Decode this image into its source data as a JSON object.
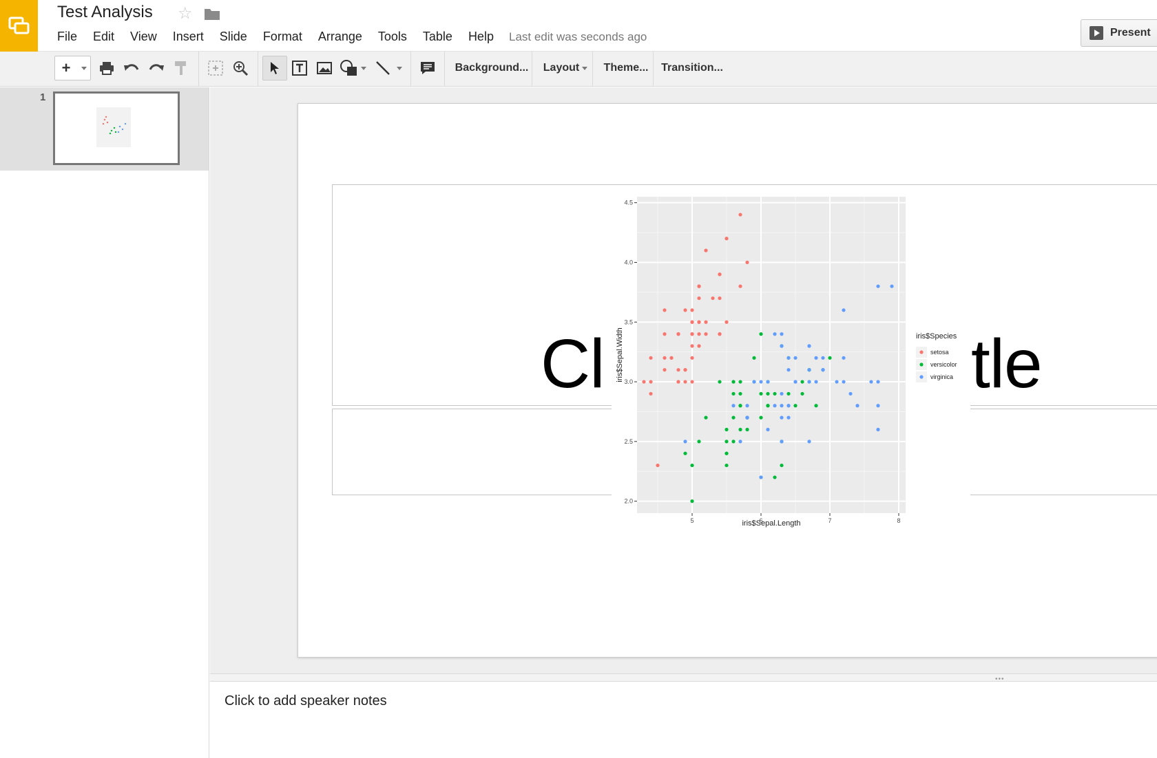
{
  "header": {
    "title": "Test Analysis",
    "menu": [
      "File",
      "Edit",
      "View",
      "Insert",
      "Slide",
      "Format",
      "Arrange",
      "Tools",
      "Table",
      "Help"
    ],
    "last_edit": "Last edit was seconds ago",
    "present_label": "Present"
  },
  "toolbar": {
    "new_slide": "+",
    "background_label": "Background...",
    "layout_label": "Layout",
    "theme_label": "Theme...",
    "transition_label": "Transition..."
  },
  "filmstrip": {
    "slide_number": "1"
  },
  "slide": {
    "title_visible_left": "Cl",
    "title_visible_right": "tle"
  },
  "notes": {
    "placeholder": "Click to add speaker notes"
  },
  "colors": {
    "logo": "#f4b400",
    "setosa": "#f8766d",
    "versicolor": "#00ba38",
    "virginica": "#619cff",
    "plot_panel": "#ebebeb"
  },
  "chart_data": {
    "type": "scatter",
    "title": "",
    "xlabel": "iris$Sepal.Length",
    "ylabel": "iris$Sepal.Width",
    "xlim": [
      4.2,
      8.1
    ],
    "ylim": [
      1.9,
      4.55
    ],
    "x_ticks": [
      5,
      6,
      7,
      8
    ],
    "y_ticks": [
      2.0,
      2.5,
      3.0,
      3.5,
      4.0,
      4.5
    ],
    "grid": true,
    "legend_title": "iris$Species",
    "legend_position": "right",
    "series": [
      {
        "name": "setosa",
        "color": "#f8766d",
        "points": [
          [
            5.1,
            3.5
          ],
          [
            4.9,
            3.0
          ],
          [
            4.7,
            3.2
          ],
          [
            4.6,
            3.1
          ],
          [
            5.0,
            3.6
          ],
          [
            5.4,
            3.9
          ],
          [
            4.6,
            3.4
          ],
          [
            5.0,
            3.4
          ],
          [
            4.4,
            2.9
          ],
          [
            4.9,
            3.1
          ],
          [
            5.4,
            3.7
          ],
          [
            4.8,
            3.4
          ],
          [
            4.8,
            3.0
          ],
          [
            4.3,
            3.0
          ],
          [
            5.8,
            4.0
          ],
          [
            5.7,
            4.4
          ],
          [
            5.4,
            3.9
          ],
          [
            5.1,
            3.5
          ],
          [
            5.7,
            3.8
          ],
          [
            5.1,
            3.8
          ],
          [
            5.4,
            3.4
          ],
          [
            5.1,
            3.7
          ],
          [
            4.6,
            3.6
          ],
          [
            5.1,
            3.3
          ],
          [
            4.8,
            3.4
          ],
          [
            5.0,
            3.0
          ],
          [
            5.0,
            3.4
          ],
          [
            5.2,
            3.5
          ],
          [
            5.2,
            3.4
          ],
          [
            4.7,
            3.2
          ],
          [
            4.8,
            3.1
          ],
          [
            5.4,
            3.4
          ],
          [
            5.2,
            4.1
          ],
          [
            5.5,
            4.2
          ],
          [
            4.9,
            3.1
          ],
          [
            5.0,
            3.2
          ],
          [
            5.5,
            3.5
          ],
          [
            4.9,
            3.6
          ],
          [
            4.4,
            3.0
          ],
          [
            5.1,
            3.4
          ],
          [
            5.0,
            3.5
          ],
          [
            4.5,
            2.3
          ],
          [
            4.4,
            3.2
          ],
          [
            5.0,
            3.5
          ],
          [
            5.1,
            3.8
          ],
          [
            4.8,
            3.0
          ],
          [
            5.1,
            3.8
          ],
          [
            4.6,
            3.2
          ],
          [
            5.3,
            3.7
          ],
          [
            5.0,
            3.3
          ]
        ]
      },
      {
        "name": "versicolor",
        "color": "#00ba38",
        "points": [
          [
            7.0,
            3.2
          ],
          [
            6.4,
            3.2
          ],
          [
            6.9,
            3.1
          ],
          [
            5.5,
            2.3
          ],
          [
            6.5,
            2.8
          ],
          [
            5.7,
            2.8
          ],
          [
            6.3,
            3.3
          ],
          [
            4.9,
            2.4
          ],
          [
            6.6,
            2.9
          ],
          [
            5.2,
            2.7
          ],
          [
            5.0,
            2.0
          ],
          [
            5.9,
            3.0
          ],
          [
            6.0,
            2.2
          ],
          [
            6.1,
            2.9
          ],
          [
            5.6,
            2.9
          ],
          [
            6.7,
            3.1
          ],
          [
            5.6,
            3.0
          ],
          [
            5.8,
            2.7
          ],
          [
            6.2,
            2.2
          ],
          [
            5.6,
            2.5
          ],
          [
            5.9,
            3.2
          ],
          [
            6.1,
            2.8
          ],
          [
            6.3,
            2.5
          ],
          [
            6.1,
            2.8
          ],
          [
            6.4,
            2.9
          ],
          [
            6.6,
            3.0
          ],
          [
            6.8,
            2.8
          ],
          [
            6.7,
            3.0
          ],
          [
            6.0,
            2.9
          ],
          [
            5.7,
            2.6
          ],
          [
            5.5,
            2.4
          ],
          [
            5.5,
            2.4
          ],
          [
            5.8,
            2.7
          ],
          [
            6.0,
            2.7
          ],
          [
            5.4,
            3.0
          ],
          [
            6.0,
            3.4
          ],
          [
            6.7,
            3.1
          ],
          [
            6.3,
            2.3
          ],
          [
            5.6,
            3.0
          ],
          [
            5.5,
            2.5
          ],
          [
            5.5,
            2.6
          ],
          [
            6.1,
            3.0
          ],
          [
            5.8,
            2.6
          ],
          [
            5.0,
            2.3
          ],
          [
            5.6,
            2.7
          ],
          [
            5.7,
            3.0
          ],
          [
            5.7,
            2.9
          ],
          [
            6.2,
            2.9
          ],
          [
            5.1,
            2.5
          ],
          [
            5.7,
            2.8
          ]
        ]
      },
      {
        "name": "virginica",
        "color": "#619cff",
        "points": [
          [
            6.3,
            3.3
          ],
          [
            5.8,
            2.7
          ],
          [
            7.1,
            3.0
          ],
          [
            6.3,
            2.9
          ],
          [
            6.5,
            3.0
          ],
          [
            7.6,
            3.0
          ],
          [
            4.9,
            2.5
          ],
          [
            7.3,
            2.9
          ],
          [
            6.7,
            2.5
          ],
          [
            7.2,
            3.6
          ],
          [
            6.5,
            3.2
          ],
          [
            6.4,
            2.7
          ],
          [
            6.8,
            3.0
          ],
          [
            5.7,
            2.5
          ],
          [
            5.8,
            2.8
          ],
          [
            6.4,
            3.2
          ],
          [
            6.5,
            3.0
          ],
          [
            7.7,
            3.8
          ],
          [
            7.7,
            2.6
          ],
          [
            6.0,
            2.2
          ],
          [
            6.9,
            3.2
          ],
          [
            5.6,
            2.8
          ],
          [
            7.7,
            2.8
          ],
          [
            6.3,
            2.7
          ],
          [
            6.7,
            3.3
          ],
          [
            7.2,
            3.2
          ],
          [
            6.2,
            2.8
          ],
          [
            6.1,
            3.0
          ],
          [
            6.4,
            2.8
          ],
          [
            7.2,
            3.0
          ],
          [
            7.4,
            2.8
          ],
          [
            7.9,
            3.8
          ],
          [
            6.4,
            2.8
          ],
          [
            6.3,
            2.8
          ],
          [
            6.1,
            2.6
          ],
          [
            7.7,
            3.0
          ],
          [
            6.3,
            3.4
          ],
          [
            6.4,
            3.1
          ],
          [
            6.0,
            3.0
          ],
          [
            6.9,
            3.1
          ],
          [
            6.7,
            3.1
          ],
          [
            6.9,
            3.1
          ],
          [
            5.8,
            2.7
          ],
          [
            6.8,
            3.2
          ],
          [
            6.7,
            3.3
          ],
          [
            6.7,
            3.0
          ],
          [
            6.3,
            2.5
          ],
          [
            6.5,
            3.0
          ],
          [
            6.2,
            3.4
          ],
          [
            5.9,
            3.0
          ]
        ]
      }
    ]
  }
}
